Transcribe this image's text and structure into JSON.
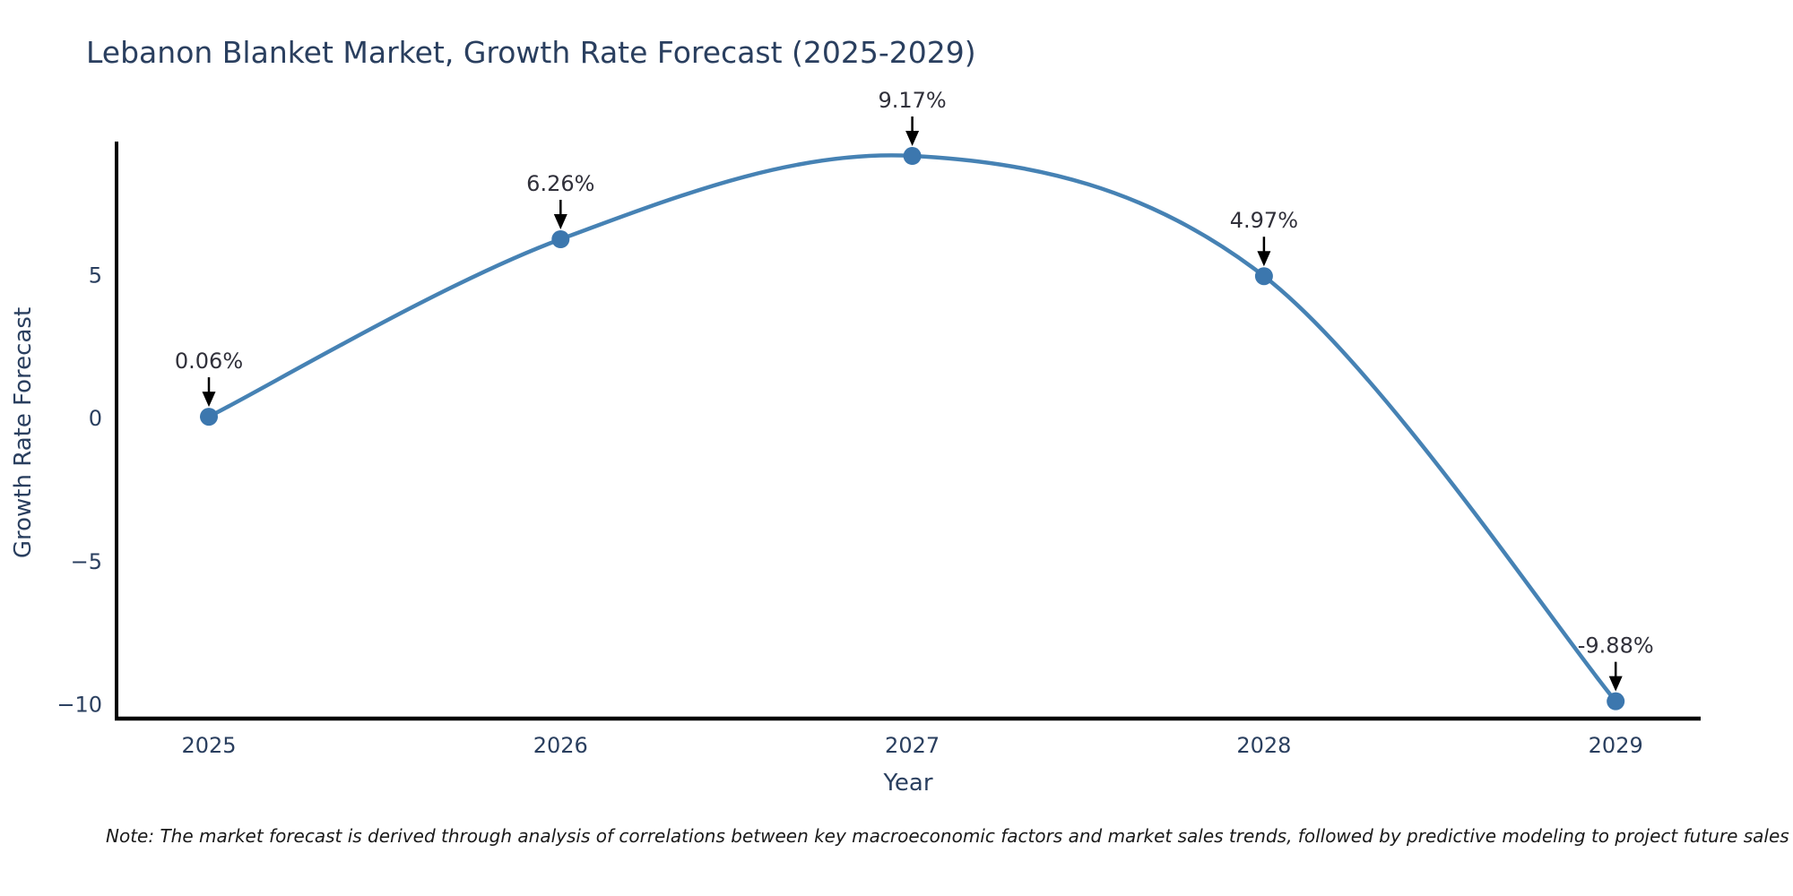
{
  "note": "Note: The market forecast is derived through analysis of correlations between key macroeconomic factors and market sales trends, followed by predictive modeling to project future sales",
  "chart_data": {
    "type": "line",
    "title": "Lebanon Blanket Market, Growth Rate Forecast (2025-2029)",
    "xlabel": "Year",
    "ylabel": "Growth Rate Forecast",
    "x": [
      2025,
      2026,
      2027,
      2028,
      2029
    ],
    "series": [
      {
        "name": "Growth Rate Forecast",
        "values": [
          0.06,
          6.26,
          9.17,
          4.97,
          -9.88
        ]
      }
    ],
    "point_labels": [
      "0.06%",
      "6.26%",
      "9.17%",
      "4.97%",
      "-9.88%"
    ],
    "xtick_labels": [
      "2025",
      "2026",
      "2027",
      "2028",
      "2029"
    ],
    "ytick_values": [
      5,
      0,
      -5,
      -10
    ],
    "ytick_labels": [
      "5",
      "0",
      "−5",
      "−10"
    ],
    "ylim": [
      -10.6,
      10.2
    ],
    "grid": false,
    "legend_position": "none",
    "colors": {
      "line": "#4682b4",
      "marker": "#3c77ae",
      "arrow": "#000000",
      "axis": "#000000",
      "text": "#2a3f5f"
    }
  }
}
